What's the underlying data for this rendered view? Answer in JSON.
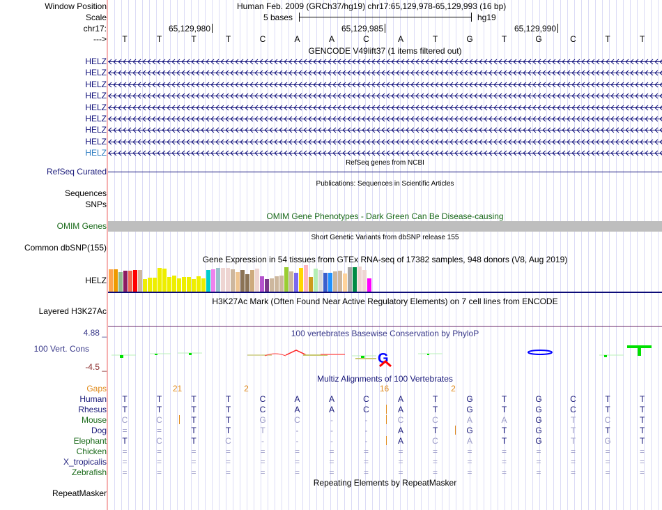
{
  "labels": {
    "window_position": "Window Position",
    "scale": "Scale",
    "chrom": "chr17:",
    "strand": "--->",
    "refseq": "RefSeq Curated",
    "sequences": "Sequences",
    "snps": "SNPs",
    "omim": "OMIM Genes",
    "dbsnp": "Common dbSNP(155)",
    "gtex": "HELZ",
    "h3k27ac": "Layered H3K27Ac",
    "cons_max": "4.88 _",
    "cons": "100 Vert. Cons",
    "cons_min": "-4.5 _",
    "repeatmasker": "RepeatMasker"
  },
  "header": {
    "assembly": "Human Feb. 2009 (GRCh37/hg19)   chr17:65,129,978-65,129,993 (16 bp)",
    "scale_text": "5 bases",
    "scale_db": "hg19",
    "positions": [
      "65,129,980",
      "65,129,985",
      "65,129,990"
    ]
  },
  "bases": [
    "T",
    "T",
    "T",
    "T",
    "C",
    "A",
    "A",
    "C",
    "A",
    "T",
    "G",
    "T",
    "G",
    "C",
    "T",
    "T"
  ],
  "titles": {
    "gencode": "GENCODE V49lift37 (1 items filtered out)",
    "refseq": "RefSeq genes from NCBI",
    "pubs": "Publications: Sequences in Scientific Articles",
    "omim": "OMIM Gene Phenotypes - Dark Green Can Be Disease-causing",
    "dbsnp": "Short Genetic Variants from dbSNP release 155",
    "gtex": "Gene Expression in 54 tissues from GTEx RNA-seq of 17382 samples, 948 donors (V8, Aug 2019)",
    "h3k27ac": "H3K27Ac Mark (Often Found Near Active Regulatory Elements) on 7 cell lines from ENCODE",
    "phylop": "100 vertebrates Basewise Conservation by PhyloP",
    "multiz": "Multiz Alignments of 100 Vertebrates",
    "repeatmasker": "Repeating Elements by RepeatMasker"
  },
  "gencode_genes": [
    "HELZ",
    "HELZ",
    "HELZ",
    "HELZ",
    "HELZ",
    "HELZ",
    "HELZ",
    "HELZ",
    "HELZ"
  ],
  "colors": {
    "gene": "#0c0c78",
    "gene_alt": "#2a7ac0",
    "omim": "#bebebe",
    "orange": "#e08a1a"
  },
  "gtex": {
    "colors": [
      "#ffa54f",
      "#ee9a00",
      "#8fbc8f",
      "#8b1c62",
      "#ee6a50",
      "#ff0000",
      "#cdb79e",
      "#eeee00",
      "#eeee00",
      "#eeee00",
      "#eeee00",
      "#eeee00",
      "#eeee00",
      "#eeee00",
      "#eeee00",
      "#eeee00",
      "#eeee00",
      "#eeee00",
      "#eeee00",
      "#eeee00",
      "#00cdcd",
      "#ee82ee",
      "#9ac0cd",
      "#eed5d2",
      "#eed5d2",
      "#cdb79e",
      "#eec591",
      "#8b7355",
      "#8b7355",
      "#cdaa7d",
      "#eed5d2",
      "#b452cd",
      "#7a378b",
      "#cdb79e",
      "#cdb79e",
      "#cdb79e",
      "#9acd32",
      "#cdb79e",
      "#7b68ee",
      "#ffd700",
      "#ffb6c1",
      "#cd9b1d",
      "#b4eeb4",
      "#d9d9d9",
      "#3a5fcd",
      "#1e90ff",
      "#cdb79e",
      "#cdb79e",
      "#ffd39b",
      "#a6a6a6",
      "#008b45",
      "#eed5d2",
      "#eed5d2",
      "#ff00ff"
    ],
    "values": [
      0.84,
      0.84,
      0.74,
      0.79,
      0.79,
      0.81,
      0.81,
      0.47,
      0.52,
      0.52,
      0.89,
      0.87,
      0.55,
      0.6,
      0.5,
      0.55,
      0.55,
      0.47,
      0.57,
      0.5,
      0.81,
      0.84,
      0.89,
      0.89,
      0.89,
      0.84,
      0.74,
      0.81,
      0.66,
      0.81,
      0.87,
      0.57,
      0.47,
      0.5,
      0.57,
      0.6,
      0.92,
      0.76,
      0.71,
      0.89,
      1.0,
      0.55,
      0.87,
      0.81,
      0.71,
      0.71,
      0.76,
      0.79,
      0.68,
      0.92,
      0.92,
      0.95,
      0.81,
      0.5
    ]
  },
  "multiz": {
    "gaps_label": "Gaps",
    "gaps": [
      {
        "after": 1,
        "text": "21"
      },
      {
        "after": 3,
        "text": "2"
      },
      {
        "after": 7,
        "text": "16"
      },
      {
        "after": 9,
        "text": "2"
      }
    ],
    "species": [
      {
        "name": "Human",
        "color": "navy",
        "seq": "TTTTCAACATGTGCTT"
      },
      {
        "name": "Rhesus",
        "color": "navy",
        "seq": "TTTTCAACATGTGCTT",
        "gap_after": [
          7
        ]
      },
      {
        "name": "Mouse",
        "color": "green",
        "seq": "CCTTGC--CCAAGTCT",
        "gap_after": [
          1,
          7
        ]
      },
      {
        "name": "Dog",
        "color": "navy",
        "seq": "==TTT---ATGTGTTT",
        "gap_after": [
          9
        ]
      },
      {
        "name": "Elephant",
        "color": "green",
        "seq": "TCTC----ACATGTGT",
        "gap_after": [
          7
        ]
      },
      {
        "name": "Chicken",
        "color": "green",
        "seq": "================"
      },
      {
        "name": "X_tropicalis",
        "color": "navy",
        "seq": "================"
      },
      {
        "name": "Zebrafish",
        "color": "green",
        "seq": "================"
      }
    ]
  }
}
